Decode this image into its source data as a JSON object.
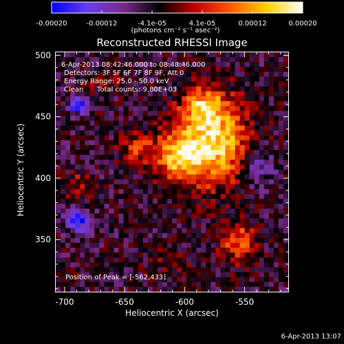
{
  "colorbar": {
    "tick_labels": [
      "-0.00020",
      "-0.00012",
      "-4.1e-05",
      "4.1e-05",
      "0.00012",
      "0.00020"
    ],
    "units": "(photons cm⁻² s⁻¹ asec⁻²)",
    "range": [
      -0.0002,
      0.0002
    ],
    "colors": [
      "#0000ff",
      "#6a3cf0",
      "#7a2a8a",
      "#000000",
      "#c00000",
      "#ff5a00",
      "#ffd000",
      "#ffffff"
    ]
  },
  "annotations": {
    "time_range": "6-Apr-2013 08:42:46.000 to 08:48:46.000",
    "detectors": "Detectors: 3F 5F 6F 7F 8F 9F, Att 0",
    "energy": "Energy Range: 25.0 - 50.0 keV",
    "clean": "Clean",
    "total_counts": "Total counts: 9.80E+03",
    "peak": "Position of Peak = [-562,433]"
  },
  "footer": "6-Apr-2013 13:07",
  "chart_data": {
    "type": "heatmap",
    "title": "Reconstructed RHESSI Image",
    "xlabel": "Heliocentric X (arcsec)",
    "ylabel": "Heliocentric Y (arcsec)",
    "xlim": [
      -708,
      -513
    ],
    "ylim": [
      307,
      503
    ],
    "x_ticks": [
      -700,
      -650,
      -600,
      -550
    ],
    "y_ticks": [
      350,
      400,
      450,
      500
    ],
    "x_tick_labels": [
      "-700",
      "-650",
      "-600",
      "-550"
    ],
    "y_tick_labels": [
      "350",
      "400",
      "450",
      "500"
    ],
    "peak": [
      -562,
      433
    ],
    "sources": [
      {
        "x": -575,
        "y": 430,
        "intensity": 0.0002,
        "sx": 20,
        "sy": 25
      },
      {
        "x": -605,
        "y": 418,
        "intensity": 0.00016,
        "sx": 14,
        "sy": 14
      },
      {
        "x": -585,
        "y": 460,
        "intensity": 0.00012,
        "sx": 12,
        "sy": 10
      },
      {
        "x": -640,
        "y": 425,
        "intensity": 9e-05,
        "sx": 10,
        "sy": 10
      },
      {
        "x": -555,
        "y": 348,
        "intensity": 0.00012,
        "sx": 10,
        "sy": 12
      },
      {
        "x": -690,
        "y": 395,
        "intensity": 6e-05,
        "sx": 8,
        "sy": 8
      },
      {
        "x": -668,
        "y": 480,
        "intensity": 5e-05,
        "sx": 10,
        "sy": 8
      },
      {
        "x": -610,
        "y": 330,
        "intensity": 3e-05,
        "sx": 14,
        "sy": 8
      },
      {
        "x": -690,
        "y": 460,
        "intensity": -0.00015,
        "sx": 5,
        "sy": 5
      },
      {
        "x": -688,
        "y": 365,
        "intensity": -0.00013,
        "sx": 8,
        "sy": 6
      },
      {
        "x": -540,
        "y": 410,
        "intensity": -8e-05,
        "sx": 10,
        "sy": 12
      }
    ]
  }
}
